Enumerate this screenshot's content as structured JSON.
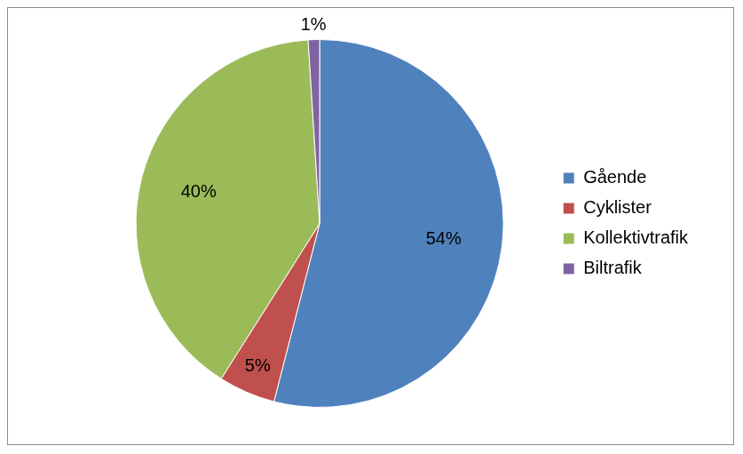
{
  "chart_data": {
    "type": "pie",
    "categories": [
      "Gående",
      "Cyklister",
      "Kollektivtrafik",
      "Biltrafik"
    ],
    "values": [
      54,
      5,
      40,
      1
    ],
    "value_labels": [
      "54%",
      "5%",
      "40%",
      "1%"
    ],
    "colors": [
      "#4f81bd",
      "#c0504d",
      "#9bbb59",
      "#8064a2"
    ],
    "data_labels": true,
    "legend": "right"
  }
}
